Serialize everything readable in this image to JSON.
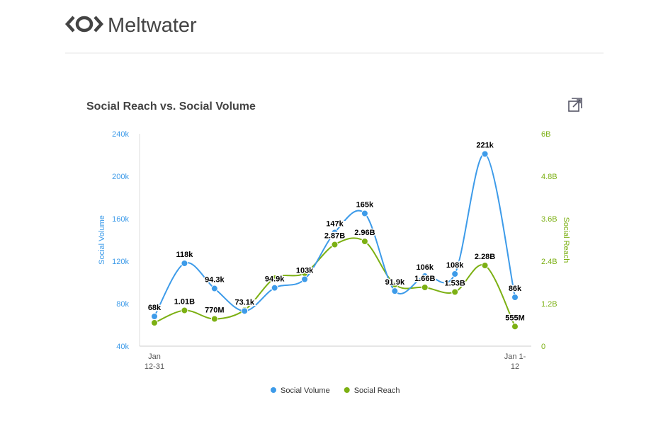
{
  "header": {
    "brand": "Meltwater"
  },
  "chart_data": {
    "type": "line",
    "title": "Social Reach vs. Social Volume",
    "categories": [
      "Jan 12-31",
      null,
      null,
      null,
      null,
      null,
      null,
      null,
      null,
      null,
      null,
      null,
      "Jan 1-12"
    ],
    "y_label": "Social Volume",
    "y2_label": "Social Reach",
    "ylim": [
      40000,
      240000
    ],
    "yticks": [
      {
        "value": 40000,
        "label": "40k"
      },
      {
        "value": 80000,
        "label": "80k"
      },
      {
        "value": 120000,
        "label": "120k"
      },
      {
        "value": 160000,
        "label": "160k"
      },
      {
        "value": 200000,
        "label": "200k"
      },
      {
        "value": 240000,
        "label": "240k"
      }
    ],
    "y2lim": [
      0,
      6000000000
    ],
    "y2ticks": [
      0,
      {
        "value": 1200000000,
        "label": "1.2B"
      },
      {
        "value": 2400000000,
        "label": "2.4B"
      },
      {
        "value": 3600000000,
        "label": "3.6B"
      },
      {
        "value": 4800000000,
        "label": "4.8B"
      },
      {
        "value": 6000000000,
        "label": "6B"
      }
    ],
    "legend": "bottom",
    "series": [
      {
        "name": "Social Volume",
        "color": "#3d9be9",
        "values": [
          68000,
          118000,
          94300,
          73100,
          94900,
          103000,
          147000,
          165000,
          91900,
          106000,
          108000,
          221000,
          86000
        ],
        "value_labels": [
          "68k",
          "118k",
          "94.3k",
          "73.1k",
          "94.9k",
          "103k",
          "147k",
          "165k",
          "91.9k",
          "106k",
          "108k",
          "221k",
          "86k"
        ]
      },
      {
        "name": "Social Reach",
        "color": "#7cb013",
        "axis": "y2",
        "values": [
          660000000,
          1010000000,
          770000000,
          1020000000,
          1920000000,
          2060000000,
          2870000000,
          2960000000,
          1740000000,
          1660000000,
          1530000000,
          2280000000,
          555000000
        ],
        "value_labels": [
          null,
          "1.01B",
          "770M",
          null,
          null,
          null,
          "2.87B",
          "2.96B",
          null,
          "1.66B",
          "1.53B",
          "2.28B",
          "555M"
        ]
      }
    ]
  }
}
